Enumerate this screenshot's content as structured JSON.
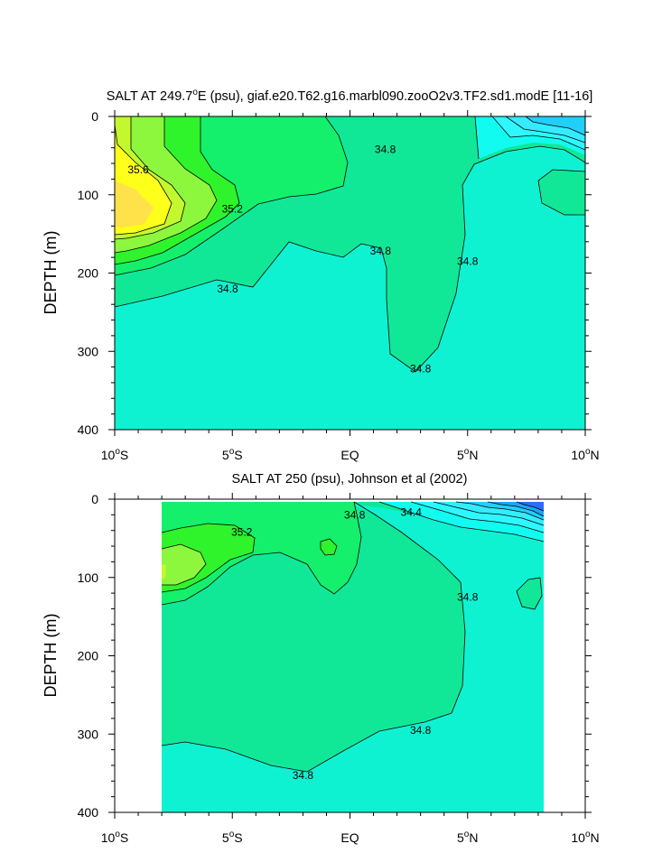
{
  "chart_data": [
    {
      "type": "heatmap",
      "title_main": "SALT AT 249.7",
      "title_sup": "o",
      "title_rest": "E (psu), giaf.e20.T62.g16.marbl090.zooO2v3.TF2.sd1.modE [11-16]",
      "ylabel": "DEPTH (m)",
      "xlim": [
        -10,
        10
      ],
      "ylim": [
        400,
        0
      ],
      "y_ticks": [
        "0",
        "100",
        "200",
        "300",
        "400"
      ],
      "x_ticks": [
        {
          "num": "10",
          "deg": "o",
          "hem": "S"
        },
        {
          "num": "5",
          "deg": "o",
          "hem": "S"
        },
        {
          "num": "EQ",
          "deg": "",
          "hem": ""
        },
        {
          "num": "5",
          "deg": "o",
          "hem": "N"
        },
        {
          "num": "10",
          "deg": "o",
          "hem": "N"
        }
      ],
      "contour_labels": [
        {
          "text": "35.6",
          "x": -9.0,
          "y": 68
        },
        {
          "text": "35.2",
          "x": -5.0,
          "y": 118
        },
        {
          "text": "34.8",
          "x": 1.5,
          "y": 42
        },
        {
          "text": "34.8",
          "x": 1.3,
          "y": 172
        },
        {
          "text": "34.8",
          "x": -5.2,
          "y": 220
        },
        {
          "text": "34.8",
          "x": 5.0,
          "y": 185
        },
        {
          "text": "34.8",
          "x": 3.0,
          "y": 322
        }
      ]
    },
    {
      "type": "heatmap",
      "title_main": "SALT AT 250 (psu), Johnson et al (2002)",
      "ylabel": "DEPTH (m)",
      "xlim": [
        -10,
        10
      ],
      "ylim": [
        400,
        0
      ],
      "y_ticks": [
        "0",
        "100",
        "200",
        "300",
        "400"
      ],
      "x_ticks": [
        {
          "num": "10",
          "deg": "o",
          "hem": "S"
        },
        {
          "num": "5",
          "deg": "o",
          "hem": "S"
        },
        {
          "num": "EQ",
          "deg": "",
          "hem": ""
        },
        {
          "num": "5",
          "deg": "o",
          "hem": "N"
        },
        {
          "num": "10",
          "deg": "o",
          "hem": "N"
        }
      ],
      "contour_labels": [
        {
          "text": "35.2",
          "x": -4.6,
          "y": 42
        },
        {
          "text": "34.8",
          "x": 0.2,
          "y": 20
        },
        {
          "text": "34.4",
          "x": 2.6,
          "y": 17
        },
        {
          "text": "34.8",
          "x": 5.0,
          "y": 125
        },
        {
          "text": "34.8",
          "x": 3.0,
          "y": 295
        },
        {
          "text": "34.8",
          "x": -2.0,
          "y": 353
        }
      ]
    }
  ],
  "colors": {
    "s36": "#ffe14a",
    "s358": "#ffff1c",
    "s356": "#c3f82e",
    "s354": "#8cf73c",
    "s352": "#2ff42c",
    "s350": "#14ef6c",
    "s348": "#10e898",
    "s346": "#0ff2d2",
    "s344": "#12fbf0",
    "s342": "#2ef8ff",
    "s340": "#34ecff",
    "s338": "#22cff8",
    "s336": "#1ba6f8",
    "s334": "#2f6cf5"
  }
}
